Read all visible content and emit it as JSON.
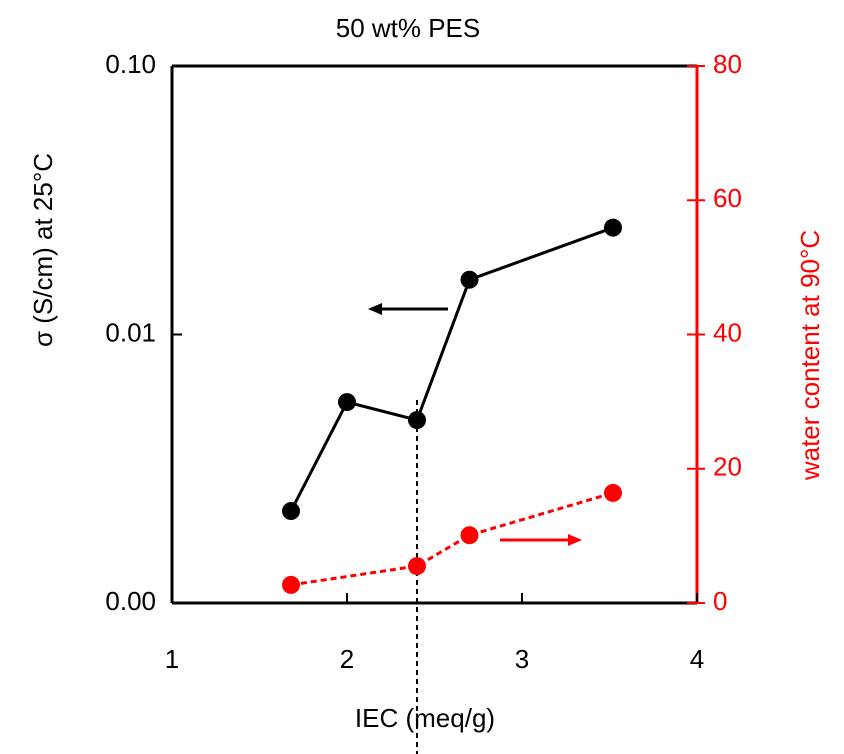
{
  "chart_data": {
    "type": "line",
    "title": "50 wt% PES",
    "x_label": "IEC (meq/g)",
    "y_label": "σ (S/cm)  at 25°C",
    "y2_label": "water content at 90°C",
    "xlim": [
      1,
      4
    ],
    "xticks": [
      1,
      2,
      3,
      4
    ],
    "ylim": [
      0.001,
      0.1
    ],
    "y_scale": "log",
    "yticks": [
      {
        "value": 0.001,
        "label": "0.00"
      },
      {
        "value": 0.01,
        "label": "0.01"
      },
      {
        "value": 0.1,
        "label": "0.10"
      }
    ],
    "y2lim": [
      0,
      80
    ],
    "y2ticks": [
      0,
      20,
      40,
      60,
      80
    ],
    "reference_line_x": 2.4,
    "series": [
      {
        "color": "#000000",
        "line_style": "solid",
        "x": [
          1.68,
          2.0,
          2.4,
          2.7,
          3.52
        ],
        "values": [
          0.0022,
          0.0056,
          0.0048,
          0.016,
          0.025
        ]
      },
      {
        "color": "#ff0000",
        "line_style": "dashed",
        "axis": "y2",
        "x": [
          1.68,
          2.4,
          2.7,
          3.52
        ],
        "values": [
          2.7,
          5.5,
          10.1,
          16.4
        ]
      }
    ]
  }
}
